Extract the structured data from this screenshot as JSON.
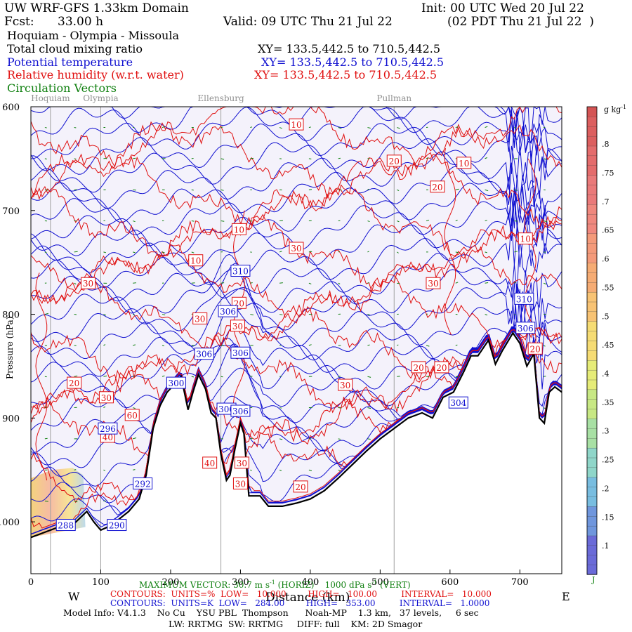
{
  "header": {
    "model": "UW WRF-GFS 1.33km Domain",
    "init": "Init: 00 UTC Wed 20 Jul 22",
    "fcst_label": "Fcst:",
    "fcst_value": "33.00 h",
    "valid": "Valid: 09 UTC Thu 21 Jul 22",
    "valid_local": "(02 PDT Thu 21 Jul 22  )",
    "route": "Hoquiam - Olympia - Missoula"
  },
  "fields": [
    {
      "name": "Total cloud mixing ratio",
      "xy": "XY= 133.5,442.5 to 710.5,442.5",
      "color": "#000000"
    },
    {
      "name": "Potential temperature",
      "xy": "XY= 133.5,442.5 to 710.5,442.5",
      "color": "#1010d0"
    },
    {
      "name": "Relative humidity (w.r.t. water)",
      "xy": "XY= 133.5,442.5 to 710.5,442.5",
      "color": "#e01010"
    },
    {
      "name": "Circulation Vectors",
      "xy": "",
      "color": "#108010"
    }
  ],
  "chart_data": {
    "type": "vertical-cross-section",
    "title": "Hoquiam - Olympia - Missoula",
    "xlabel": "Distance (km)",
    "ylabel": "Pressure (hPa)",
    "xlim": [
      0,
      760
    ],
    "ylim": [
      1050,
      600
    ],
    "x_ticks": [
      0,
      100,
      200,
      300,
      400,
      500,
      600,
      700
    ],
    "y_ticks": [
      600,
      700,
      800,
      900,
      1000
    ],
    "y_tick_labels": [
      "600",
      "700",
      "800",
      "900",
      "1000"
    ],
    "direction_left": "W",
    "direction_right": "E",
    "locations": [
      {
        "name": "Hoquiam",
        "x": 28
      },
      {
        "name": "Olympia",
        "x": 100
      },
      {
        "name": "Ellensburg",
        "x": 272
      },
      {
        "name": "Pullman",
        "x": 520
      }
    ],
    "terrain": [
      [
        0,
        1015
      ],
      [
        20,
        1010
      ],
      [
        40,
        1005
      ],
      [
        60,
        1003
      ],
      [
        80,
        990
      ],
      [
        90,
        1000
      ],
      [
        100,
        1008
      ],
      [
        110,
        1005
      ],
      [
        125,
        998
      ],
      [
        140,
        990
      ],
      [
        155,
        978
      ],
      [
        165,
        955
      ],
      [
        175,
        910
      ],
      [
        185,
        888
      ],
      [
        195,
        875
      ],
      [
        205,
        868
      ],
      [
        215,
        860
      ],
      [
        225,
        892
      ],
      [
        232,
        875
      ],
      [
        240,
        858
      ],
      [
        250,
        872
      ],
      [
        258,
        895
      ],
      [
        265,
        900
      ],
      [
        272,
        935
      ],
      [
        280,
        960
      ],
      [
        285,
        955
      ],
      [
        292,
        930
      ],
      [
        300,
        905
      ],
      [
        305,
        915
      ],
      [
        312,
        975
      ],
      [
        320,
        975
      ],
      [
        328,
        975
      ],
      [
        340,
        985
      ],
      [
        360,
        985
      ],
      [
        380,
        982
      ],
      [
        400,
        978
      ],
      [
        420,
        970
      ],
      [
        440,
        958
      ],
      [
        460,
        945
      ],
      [
        480,
        932
      ],
      [
        500,
        920
      ],
      [
        520,
        910
      ],
      [
        540,
        900
      ],
      [
        560,
        895
      ],
      [
        575,
        900
      ],
      [
        590,
        880
      ],
      [
        605,
        875
      ],
      [
        620,
        855
      ],
      [
        630,
        840
      ],
      [
        640,
        840
      ],
      [
        655,
        825
      ],
      [
        665,
        848
      ],
      [
        675,
        835
      ],
      [
        690,
        818
      ],
      [
        700,
        828
      ],
      [
        710,
        850
      ],
      [
        720,
        838
      ],
      [
        728,
        900
      ],
      [
        735,
        905
      ],
      [
        742,
        875
      ],
      [
        750,
        870
      ],
      [
        760,
        875
      ]
    ],
    "theta_contour_labels": [
      {
        "value": "310",
        "x": 300,
        "y": 758
      },
      {
        "value": "306",
        "x": 282,
        "y": 797
      },
      {
        "value": "306",
        "x": 300,
        "y": 837
      },
      {
        "value": "306",
        "x": 248,
        "y": 838
      },
      {
        "value": "306",
        "x": 280,
        "y": 891
      },
      {
        "value": "306",
        "x": 300,
        "y": 893
      },
      {
        "value": "296",
        "x": 110,
        "y": 910
      },
      {
        "value": "292",
        "x": 160,
        "y": 963
      },
      {
        "value": "288",
        "x": 50,
        "y": 1003
      },
      {
        "value": "290",
        "x": 123,
        "y": 1003
      },
      {
        "value": "310",
        "x": 706,
        "y": 785
      },
      {
        "value": "306",
        "x": 708,
        "y": 813
      },
      {
        "value": "304",
        "x": 612,
        "y": 885
      },
      {
        "value": "300",
        "x": 208,
        "y": 866
      }
    ],
    "rh_contour_labels": [
      {
        "value": "10",
        "x": 380,
        "y": 617
      },
      {
        "value": "10",
        "x": 620,
        "y": 654
      },
      {
        "value": "20",
        "x": 520,
        "y": 652
      },
      {
        "value": "20",
        "x": 582,
        "y": 677
      },
      {
        "value": "10",
        "x": 298,
        "y": 718
      },
      {
        "value": "10",
        "x": 708,
        "y": 727
      },
      {
        "value": "30",
        "x": 380,
        "y": 736
      },
      {
        "value": "10",
        "x": 236,
        "y": 748
      },
      {
        "value": "30",
        "x": 82,
        "y": 770
      },
      {
        "value": "30",
        "x": 576,
        "y": 770
      },
      {
        "value": "20",
        "x": 298,
        "y": 789
      },
      {
        "value": "30",
        "x": 296,
        "y": 811
      },
      {
        "value": "30",
        "x": 242,
        "y": 804
      },
      {
        "value": "20",
        "x": 722,
        "y": 833
      },
      {
        "value": "20",
        "x": 555,
        "y": 851
      },
      {
        "value": "20",
        "x": 588,
        "y": 851
      },
      {
        "value": "30",
        "x": 450,
        "y": 868
      },
      {
        "value": "20",
        "x": 62,
        "y": 866
      },
      {
        "value": "30",
        "x": 108,
        "y": 880
      },
      {
        "value": "60",
        "x": 145,
        "y": 897
      },
      {
        "value": "40",
        "x": 110,
        "y": 918
      },
      {
        "value": "40",
        "x": 256,
        "y": 943
      },
      {
        "value": "30",
        "x": 302,
        "y": 943
      },
      {
        "value": "30",
        "x": 300,
        "y": 963
      },
      {
        "value": "20",
        "x": 386,
        "y": 966
      }
    ],
    "theta_contours": {
      "units": "K",
      "low": 284.0,
      "high": 353.0,
      "interval": 1.0
    },
    "rh_contours": {
      "units": "%",
      "low": 10.0,
      "high": 100.0,
      "interval": 10.0
    },
    "max_vector": "MAXIMUM VECTOR: 30.7 m s-1 (HORIZ) 1000 dPa s-1 (VERT)",
    "colorbar": {
      "units": "g kg-1",
      "ticks": [
        ".1",
        ".15",
        ".2",
        ".25",
        ".3",
        ".35",
        ".4",
        ".45",
        ".5",
        ".55",
        ".6",
        ".65",
        ".7",
        ".75",
        ".8"
      ]
    }
  },
  "axes_text": {
    "distance_label": "Distance (km)",
    "pressure_label": "Pressure (hPa)",
    "west": "W",
    "east": "E",
    "colorbar_units_base": "g kg",
    "colorbar_units_exp": "-1",
    "colorbar_bottom": "J"
  },
  "footer": {
    "vector_label": "MAXIMUM VECTOR:",
    "vector_value": "30.7 m s",
    "vector_horiz": "(HORIZ)",
    "vector_vert_value": "1000 dPa s",
    "vector_vert": "(VERT)",
    "rh_line": "CONTOURS:  UNITS=%  LOW=   10.000        HIGH=   100.00         INTERVAL=   10.000",
    "theta_line": "CONTOURS:  UNITS=K  LOW=   284.00        HIGH=   353.00         INTERVAL=   1.0000",
    "model_info": "Model Info: V4.1.3    No Cu    YSU PBL  Thompson      Noah-MP    1.3 km,   37 levels,     6 sec",
    "physics": "LW: RRTMG  SW: RRTMG     DIFF: full    KM: 2D Smagor"
  },
  "colors": {
    "theta": "#1010d0",
    "rh": "#e01010",
    "vector": "#108010",
    "terrain": "#000000",
    "interior": "#f4f2fb"
  }
}
